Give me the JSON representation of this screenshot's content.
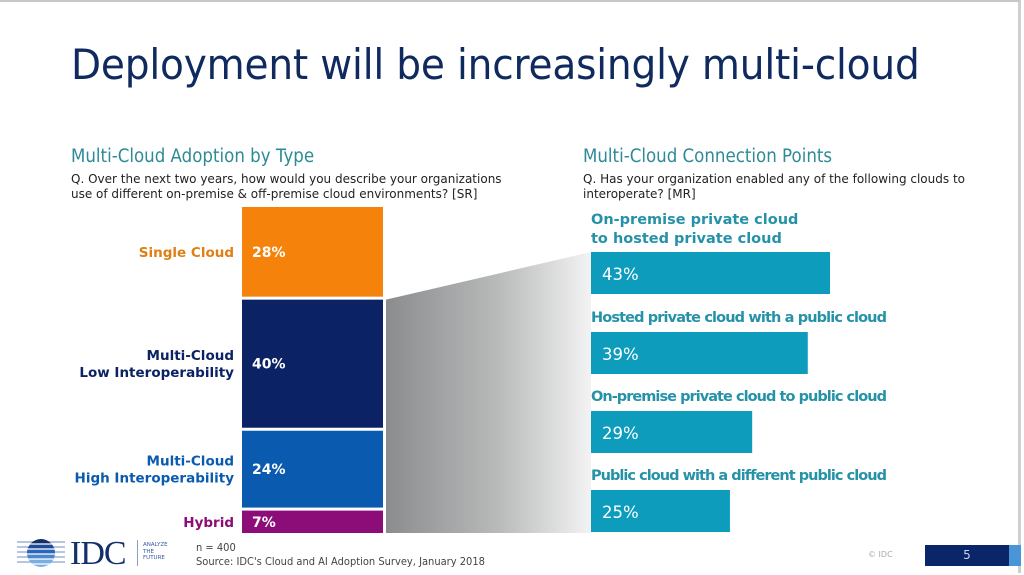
{
  "slide": {
    "title": "Deployment will be increasingly multi-cloud",
    "page_number": "5",
    "copyright": "© IDC"
  },
  "left_section": {
    "title": "Multi-Cloud Adoption by Type",
    "question": "Q. Over the next two years, how would you describe your organizations use of different on-premise & off-premise cloud environments? [SR]"
  },
  "right_section": {
    "title": "Multi-Cloud Connection Points",
    "question": "Q. Has your organization enabled any of the following clouds to interoperate? [MR]"
  },
  "footer": {
    "n_label": "n = 400",
    "source": "Source: IDC's Cloud and AI Adoption Survey, January 2018",
    "logo_text": "IDC",
    "logo_tagline": [
      "ANALYZE",
      "THE",
      "FUTURE"
    ]
  },
  "colors": {
    "single_cloud": "#f5820a",
    "multi_low": "#0b2264",
    "multi_high": "#0a5bb0",
    "hybrid": "#8c0d78",
    "connection_bar": "#0e9cbd",
    "connection_label": "#2592a8",
    "title": "#0f2a5e"
  },
  "chart_data": [
    {
      "type": "bar",
      "subtype": "stacked-100",
      "title": "Multi-Cloud Adoption by Type",
      "categories": [
        "Single Cloud",
        "Multi-Cloud Low Interoperability",
        "Multi-Cloud High Interoperability",
        "Hybrid"
      ],
      "label_lines": [
        [
          "Single Cloud"
        ],
        [
          "Multi-Cloud",
          "Low Interoperability"
        ],
        [
          "Multi-Cloud",
          "High Interoperability"
        ],
        [
          "Hybrid"
        ]
      ],
      "values": [
        28,
        40,
        24,
        7
      ],
      "value_labels": [
        "28%",
        "40%",
        "24%",
        "7%"
      ],
      "unit": "%"
    },
    {
      "type": "bar",
      "orientation": "horizontal",
      "title": "Multi-Cloud Connection Points",
      "categories": [
        "On-premise private cloud to hosted private cloud",
        "Hosted private cloud with a public cloud",
        "On-premise private cloud to public cloud",
        "Public cloud with a different public cloud"
      ],
      "label_lines": [
        [
          "On-premise private cloud",
          "to hosted private cloud"
        ],
        [
          "Hosted private cloud with a public cloud"
        ],
        [
          "On-premise private cloud to public cloud"
        ],
        [
          "Public cloud with a different public cloud"
        ]
      ],
      "values": [
        43,
        39,
        29,
        25
      ],
      "value_labels": [
        "43%",
        "39%",
        "29%",
        "25%"
      ],
      "unit": "%"
    }
  ]
}
